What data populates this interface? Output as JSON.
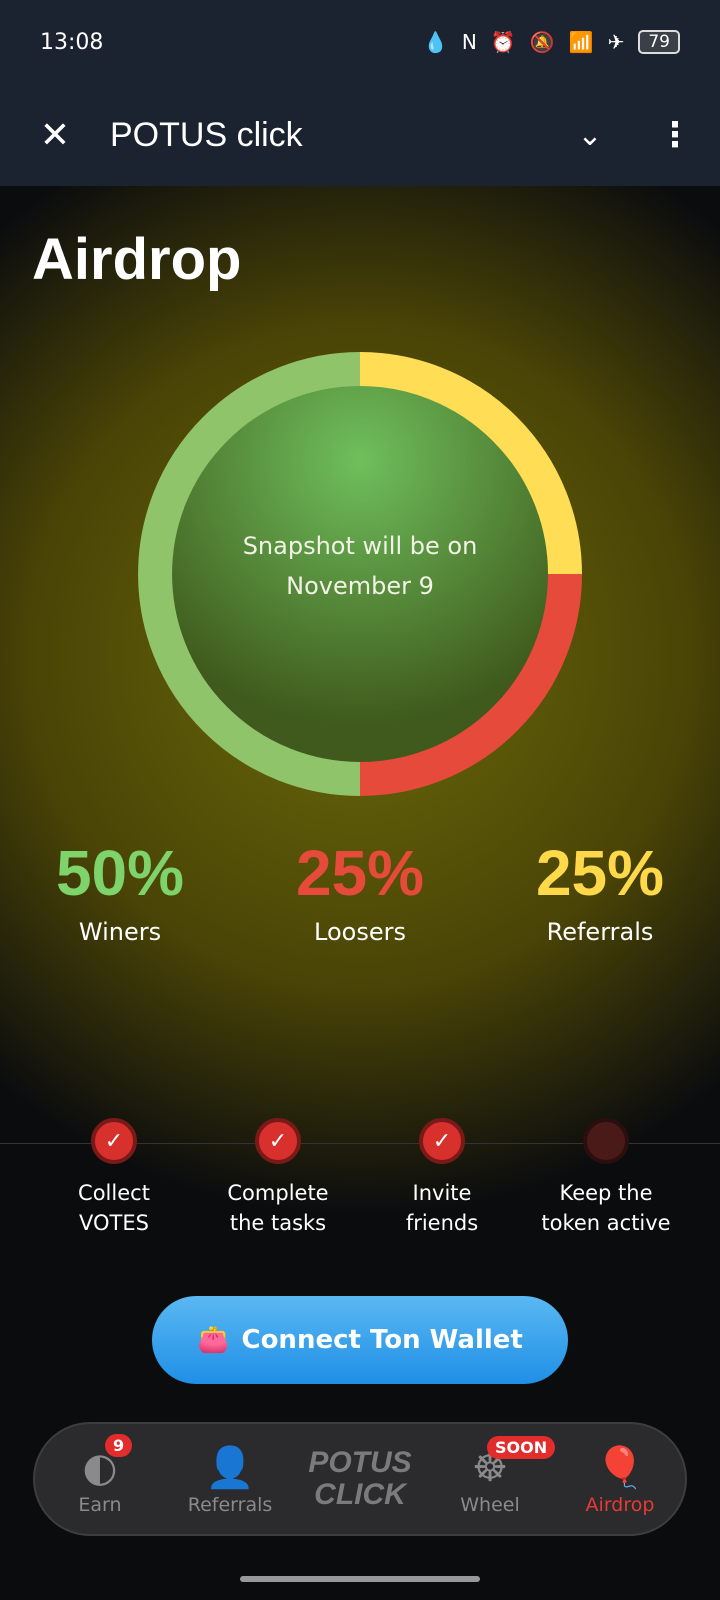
{
  "status": {
    "time": "13:08",
    "battery": "79",
    "icons": [
      "drop-icon",
      "nfc-icon",
      "alarm-icon",
      "bell-off-icon",
      "wifi-icon",
      "airplane-icon",
      "battery-icon"
    ]
  },
  "appbar": {
    "title": "POTUS click"
  },
  "page": {
    "title": "Airdrop",
    "snapshot_line1": "Snapshot will be on",
    "snapshot_line2": "November 9"
  },
  "chart_data": {
    "type": "pie",
    "values": [
      50,
      25,
      25
    ],
    "labels": [
      "Winers",
      "Loosers",
      "Referrals"
    ],
    "colors": [
      "#8fc46b",
      "#e64a3b",
      "#ffdd55"
    ]
  },
  "stats": [
    {
      "pct": "50%",
      "label": "Winers",
      "color": "#7ed36a"
    },
    {
      "pct": "25%",
      "label": "Loosers",
      "color": "#e64a3b"
    },
    {
      "pct": "25%",
      "label": "Referrals",
      "color": "#ffd94a"
    }
  ],
  "steps": [
    {
      "l1": "Collect",
      "l2": "VOTES",
      "done": true
    },
    {
      "l1": "Complete",
      "l2": "the tasks",
      "done": true
    },
    {
      "l1": "Invite",
      "l2": "friends",
      "done": true
    },
    {
      "l1": "Keep the",
      "l2": "token active",
      "done": false
    }
  ],
  "connect_label": "Connect Ton Wallet",
  "nav": {
    "earn": "Earn",
    "earn_badge": "9",
    "referrals": "Referrals",
    "logo1": "POTUS",
    "logo2": "CLICK",
    "wheel": "Wheel",
    "wheel_badge": "SOON",
    "airdrop": "Airdrop"
  }
}
